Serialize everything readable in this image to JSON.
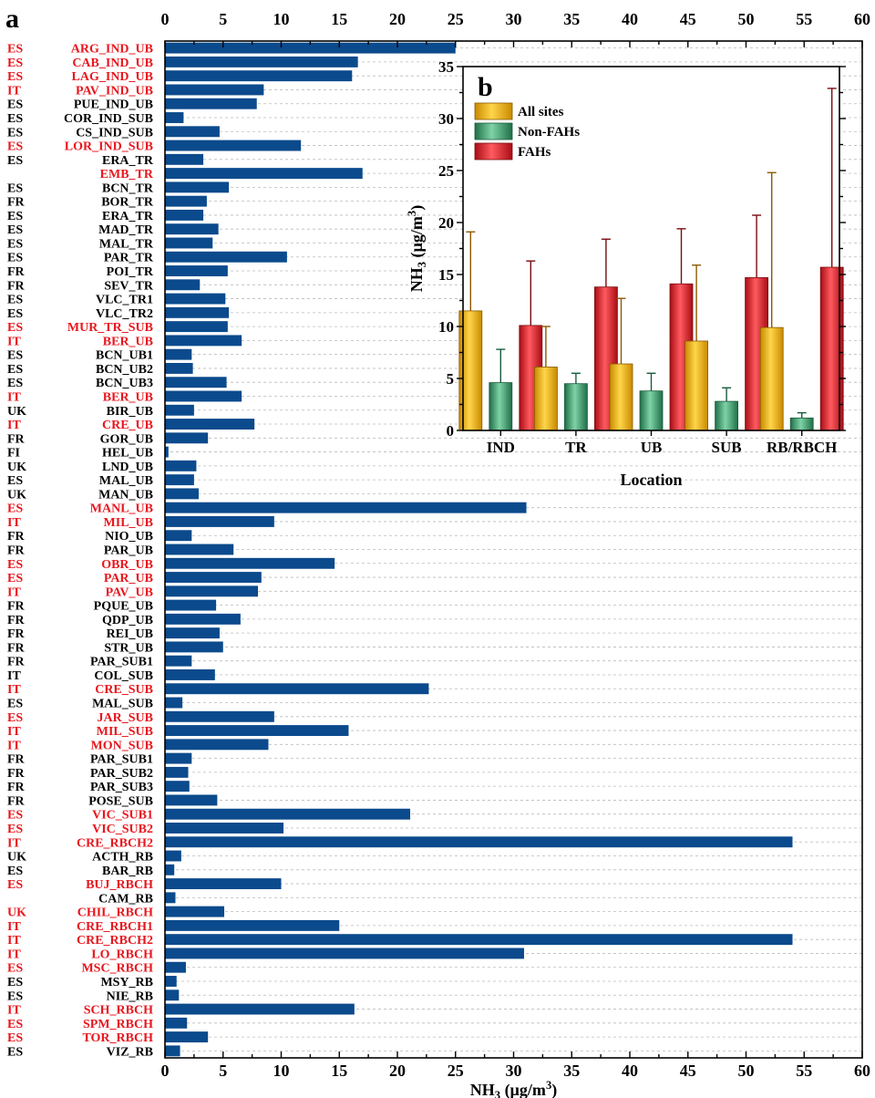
{
  "chart_data": [
    {
      "type": "bar",
      "orientation": "horizontal",
      "panel_label": "a",
      "xlabel": "NH3 (µg/m3)",
      "xlim": [
        0,
        60
      ],
      "xticks": [
        0,
        5,
        10,
        15,
        20,
        25,
        30,
        35,
        40,
        45,
        50,
        55,
        60
      ],
      "grid": "dashed horizontal lines",
      "bar_color": "#0b4a8c",
      "highlight_color": "#e8161d",
      "bars": [
        {
          "country": "ES",
          "site": "ARG_IND_UB",
          "value": 25.0,
          "highlight": true
        },
        {
          "country": "ES",
          "site": "CAB_IND_UB",
          "value": 16.6,
          "highlight": true
        },
        {
          "country": "ES",
          "site": "LAG_IND_UB",
          "value": 16.1,
          "highlight": true
        },
        {
          "country": "IT",
          "site": "PAV_IND_UB",
          "value": 8.5,
          "highlight": true
        },
        {
          "country": "ES",
          "site": "PUE_IND_UB",
          "value": 7.9,
          "highlight": false
        },
        {
          "country": "ES",
          "site": "COR_IND_SUB",
          "value": 1.6,
          "highlight": false
        },
        {
          "country": "ES",
          "site": "CS_IND_SUB",
          "value": 4.7,
          "highlight": false
        },
        {
          "country": "ES",
          "site": "LOR_IND_SUB",
          "value": 11.7,
          "highlight": true
        },
        {
          "country": "ES",
          "site": "ERA_TR",
          "value": 3.3,
          "highlight": false
        },
        {
          "country": "",
          "site": "EMB_TR",
          "value": 17.0,
          "highlight": true
        },
        {
          "country": "ES",
          "site": "BCN_TR",
          "value": 5.5,
          "highlight": false
        },
        {
          "country": "FR",
          "site": "BOR_TR",
          "value": 3.6,
          "highlight": false
        },
        {
          "country": "ES",
          "site": "ERA_TR",
          "value": 3.3,
          "highlight": false
        },
        {
          "country": "ES",
          "site": "MAD_TR",
          "value": 4.6,
          "highlight": false
        },
        {
          "country": "ES",
          "site": "MAL_TR",
          "value": 4.1,
          "highlight": false
        },
        {
          "country": "ES",
          "site": "PAR_TR",
          "value": 10.5,
          "highlight": false
        },
        {
          "country": "FR",
          "site": "POI_TR",
          "value": 5.4,
          "highlight": false
        },
        {
          "country": "FR",
          "site": "SEV_TR",
          "value": 3.0,
          "highlight": false
        },
        {
          "country": "ES",
          "site": "VLC_TR1",
          "value": 5.2,
          "highlight": false
        },
        {
          "country": "ES",
          "site": "VLC_TR2",
          "value": 5.5,
          "highlight": false
        },
        {
          "country": "ES",
          "site": "MUR_TR_SUB",
          "value": 5.4,
          "highlight": true
        },
        {
          "country": "IT",
          "site": "BER_UB",
          "value": 6.6,
          "highlight": true
        },
        {
          "country": "ES",
          "site": "BCN_UB1",
          "value": 2.3,
          "highlight": false
        },
        {
          "country": "ES",
          "site": "BCN_UB2",
          "value": 2.4,
          "highlight": false
        },
        {
          "country": "ES",
          "site": "BCN_UB3",
          "value": 5.3,
          "highlight": false
        },
        {
          "country": "IT",
          "site": "BER_UB",
          "value": 6.6,
          "highlight": true
        },
        {
          "country": "UK",
          "site": "BIR_UB",
          "value": 2.5,
          "highlight": false
        },
        {
          "country": "IT",
          "site": "CRE_UB",
          "value": 7.7,
          "highlight": true
        },
        {
          "country": "FR",
          "site": "GOR_UB",
          "value": 3.7,
          "highlight": false
        },
        {
          "country": "FI",
          "site": "HEL_UB",
          "value": 0.3,
          "highlight": false
        },
        {
          "country": "UK",
          "site": "LND_UB",
          "value": 2.7,
          "highlight": false
        },
        {
          "country": "ES",
          "site": "MAL_UB",
          "value": 2.5,
          "highlight": false
        },
        {
          "country": "UK",
          "site": "MAN_UB",
          "value": 2.9,
          "highlight": false
        },
        {
          "country": "ES",
          "site": "MANL_UB",
          "value": 31.1,
          "highlight": true
        },
        {
          "country": "IT",
          "site": "MIL_UB",
          "value": 9.4,
          "highlight": true
        },
        {
          "country": "FR",
          "site": "NIO_UB",
          "value": 2.3,
          "highlight": false
        },
        {
          "country": "FR",
          "site": "PAR_UB",
          "value": 5.9,
          "highlight": false
        },
        {
          "country": "ES",
          "site": "OBR_UB",
          "value": 14.6,
          "highlight": true
        },
        {
          "country": "ES",
          "site": "PAR_UB",
          "value": 8.3,
          "highlight": true
        },
        {
          "country": "IT",
          "site": "PAV_UB",
          "value": 8.0,
          "highlight": true
        },
        {
          "country": "FR",
          "site": "PQUE_UB",
          "value": 4.4,
          "highlight": false
        },
        {
          "country": "FR",
          "site": "QDP_UB",
          "value": 6.5,
          "highlight": false
        },
        {
          "country": "FR",
          "site": "REI_UB",
          "value": 4.7,
          "highlight": false
        },
        {
          "country": "FR",
          "site": "STR_UB",
          "value": 5.0,
          "highlight": false
        },
        {
          "country": "FR",
          "site": "PAR_SUB1",
          "value": 2.3,
          "highlight": false
        },
        {
          "country": "IT",
          "site": "COL_SUB",
          "value": 4.3,
          "highlight": false
        },
        {
          "country": "IT",
          "site": "CRE_SUB",
          "value": 22.7,
          "highlight": true
        },
        {
          "country": "ES",
          "site": "MAL_SUB",
          "value": 1.5,
          "highlight": false
        },
        {
          "country": "ES",
          "site": "JAR_SUB",
          "value": 9.4,
          "highlight": true
        },
        {
          "country": "IT",
          "site": "MIL_SUB",
          "value": 15.8,
          "highlight": true
        },
        {
          "country": "IT",
          "site": "MON_SUB",
          "value": 8.9,
          "highlight": true
        },
        {
          "country": "FR",
          "site": "PAR_SUB1",
          "value": 2.3,
          "highlight": false
        },
        {
          "country": "FR",
          "site": "PAR_SUB2",
          "value": 2.0,
          "highlight": false
        },
        {
          "country": "FR",
          "site": "PAR_SUB3",
          "value": 2.1,
          "highlight": false
        },
        {
          "country": "FR",
          "site": "POSE_SUB",
          "value": 4.5,
          "highlight": false
        },
        {
          "country": "ES",
          "site": "VIC_SUB1",
          "value": 21.1,
          "highlight": true
        },
        {
          "country": "ES",
          "site": "VIC_SUB2",
          "value": 10.2,
          "highlight": true
        },
        {
          "country": "IT",
          "site": "CRE_RBCH2",
          "value": 54.0,
          "highlight": true
        },
        {
          "country": "UK",
          "site": "ACTH_RB",
          "value": 1.4,
          "highlight": false
        },
        {
          "country": "ES",
          "site": "BAR_RB",
          "value": 0.8,
          "highlight": false
        },
        {
          "country": "ES",
          "site": "BUJ_RBCH",
          "value": 10.0,
          "highlight": true
        },
        {
          "country": "",
          "site": "CAM_RB",
          "value": 0.9,
          "highlight": false
        },
        {
          "country": "UK",
          "site": "CHIL_RBCH",
          "value": 5.1,
          "highlight": true
        },
        {
          "country": "IT",
          "site": "CRE_RBCH1",
          "value": 15.0,
          "highlight": true
        },
        {
          "country": "IT",
          "site": "CRE_RBCH2",
          "value": 54.0,
          "highlight": true
        },
        {
          "country": "IT",
          "site": "LO_RBCH",
          "value": 30.9,
          "highlight": true
        },
        {
          "country": "ES",
          "site": "MSC_RBCH",
          "value": 1.8,
          "highlight": true
        },
        {
          "country": "ES",
          "site": "MSY_RB",
          "value": 1.0,
          "highlight": false
        },
        {
          "country": "ES",
          "site": "NIE_RB",
          "value": 1.2,
          "highlight": false
        },
        {
          "country": "IT",
          "site": "SCH_RBCH",
          "value": 16.3,
          "highlight": true
        },
        {
          "country": "ES",
          "site": "SPM_RBCH",
          "value": 1.9,
          "highlight": true
        },
        {
          "country": "ES",
          "site": "TOR_RBCH",
          "value": 3.7,
          "highlight": true
        },
        {
          "country": "ES",
          "site": "VIZ_RB",
          "value": 1.3,
          "highlight": false
        }
      ]
    },
    {
      "type": "bar",
      "panel_label": "b",
      "xlabel": "Location",
      "ylabel": "NH3 (µg/m3)",
      "ylim": [
        0,
        35
      ],
      "yticks": [
        0,
        5,
        10,
        15,
        20,
        25,
        30,
        35
      ],
      "categories": [
        "IND",
        "TR",
        "UB",
        "SUB",
        "RB/RBCH"
      ],
      "legend_position": "top-left",
      "series": [
        {
          "name": "All sites",
          "color": "#f2b61f",
          "values": [
            11.5,
            6.1,
            6.4,
            8.6,
            9.9
          ],
          "errors": [
            7.6,
            3.9,
            6.3,
            7.3,
            14.9
          ]
        },
        {
          "name": "Non-FAHs",
          "color": "#2f9e6e",
          "values": [
            4.6,
            4.5,
            3.8,
            2.8,
            1.2
          ],
          "errors": [
            3.2,
            1.0,
            1.7,
            1.3,
            0.5
          ]
        },
        {
          "name": "FAHs",
          "color": "#e2202a",
          "values": [
            10.1,
            13.8,
            14.1,
            14.7,
            15.7
          ],
          "errors": [
            6.2,
            4.6,
            5.3,
            6.0,
            17.2
          ]
        }
      ]
    }
  ]
}
